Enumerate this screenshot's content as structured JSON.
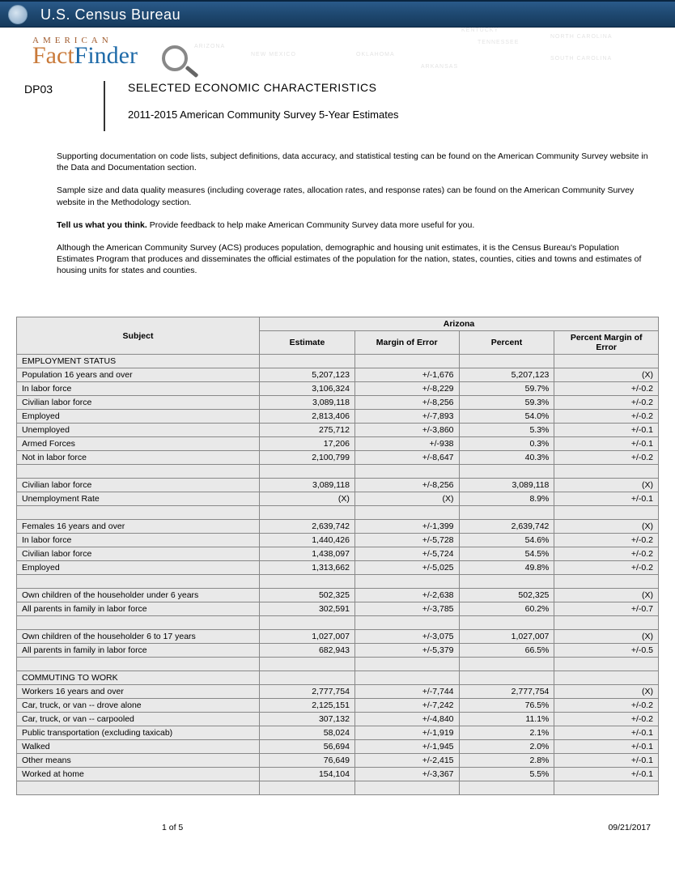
{
  "banner": "U.S. Census Bureau",
  "logo": {
    "american": "AMERICAN",
    "fact": "Fact",
    "finder": "Finder"
  },
  "mapLabels": [
    "ARIZONA",
    "NEW MEXICO",
    "OKLAHOMA",
    "ARKANSAS",
    "TENNESSEE",
    "KENTUCKY",
    "NORTH CAROLINA",
    "SOUTH CAROLINA"
  ],
  "code": "DP03",
  "title1": "SELECTED ECONOMIC CHARACTERISTICS",
  "title2": "2011-2015 American Community Survey 5-Year Estimates",
  "intro": {
    "p1": "Supporting documentation on code lists, subject definitions, data accuracy, and statistical testing can be found on the American Community Survey website in the Data and Documentation section.",
    "p2": "Sample size and data quality measures (including coverage rates, allocation rates, and response rates) can be found on the American Community Survey website in the Methodology section.",
    "p3b": "Tell us what you think.",
    "p3": " Provide feedback to help make American Community Survey data more useful for you.",
    "p4": "Although the American Community Survey (ACS) produces population, demographic and housing unit estimates, it is the Census Bureau's Population Estimates Program that produces and disseminates the official estimates of the population for the nation, states, counties, cities and towns and estimates of housing units for states and counties."
  },
  "table": {
    "colgroup": "Arizona",
    "columns": [
      "Subject",
      "Estimate",
      "Margin of Error",
      "Percent",
      "Percent Margin of Error"
    ],
    "rows": [
      {
        "type": "section",
        "label": "EMPLOYMENT STATUS"
      },
      {
        "pad": 1,
        "label": "Population 16 years and over",
        "est": "5,207,123",
        "moe": "+/-1,676",
        "pct": "5,207,123",
        "pme": "(X)"
      },
      {
        "pad": 2,
        "label": "In labor force",
        "est": "3,106,324",
        "moe": "+/-8,229",
        "pct": "59.7%",
        "pme": "+/-0.2"
      },
      {
        "pad": 3,
        "label": "Civilian labor force",
        "est": "3,089,118",
        "moe": "+/-8,256",
        "pct": "59.3%",
        "pme": "+/-0.2"
      },
      {
        "pad": 4,
        "label": "Employed",
        "est": "2,813,406",
        "moe": "+/-7,893",
        "pct": "54.0%",
        "pme": "+/-0.2"
      },
      {
        "pad": 4,
        "label": "Unemployed",
        "est": "275,712",
        "moe": "+/-3,860",
        "pct": "5.3%",
        "pme": "+/-0.1"
      },
      {
        "pad": 3,
        "label": "Armed Forces",
        "est": "17,206",
        "moe": "+/-938",
        "pct": "0.3%",
        "pme": "+/-0.1"
      },
      {
        "pad": 2,
        "label": "Not in labor force",
        "est": "2,100,799",
        "moe": "+/-8,647",
        "pct": "40.3%",
        "pme": "+/-0.2"
      },
      {
        "type": "spacer"
      },
      {
        "pad": 1,
        "label": "Civilian labor force",
        "est": "3,089,118",
        "moe": "+/-8,256",
        "pct": "3,089,118",
        "pme": "(X)"
      },
      {
        "pad": 2,
        "label": "Unemployment Rate",
        "est": "(X)",
        "moe": "(X)",
        "pct": "8.9%",
        "pme": "+/-0.1"
      },
      {
        "type": "spacer"
      },
      {
        "pad": 1,
        "label": "Females 16 years and over",
        "est": "2,639,742",
        "moe": "+/-1,399",
        "pct": "2,639,742",
        "pme": "(X)"
      },
      {
        "pad": 2,
        "label": "In labor force",
        "est": "1,440,426",
        "moe": "+/-5,728",
        "pct": "54.6%",
        "pme": "+/-0.2"
      },
      {
        "pad": 3,
        "label": "Civilian labor force",
        "est": "1,438,097",
        "moe": "+/-5,724",
        "pct": "54.5%",
        "pme": "+/-0.2"
      },
      {
        "pad": 4,
        "label": "Employed",
        "est": "1,313,662",
        "moe": "+/-5,025",
        "pct": "49.8%",
        "pme": "+/-0.2"
      },
      {
        "type": "spacer"
      },
      {
        "pad": 1,
        "label": "Own children of the householder under 6 years",
        "est": "502,325",
        "moe": "+/-2,638",
        "pct": "502,325",
        "pme": "(X)"
      },
      {
        "pad": 2,
        "label": "All parents in family in labor force",
        "est": "302,591",
        "moe": "+/-3,785",
        "pct": "60.2%",
        "pme": "+/-0.7"
      },
      {
        "type": "spacer"
      },
      {
        "pad": 1,
        "label": "Own children of the householder 6 to 17 years",
        "est": "1,027,007",
        "moe": "+/-3,075",
        "pct": "1,027,007",
        "pme": "(X)"
      },
      {
        "pad": 2,
        "label": "All parents in family in labor force",
        "est": "682,943",
        "moe": "+/-5,379",
        "pct": "66.5%",
        "pme": "+/-0.5"
      },
      {
        "type": "spacer"
      },
      {
        "type": "section",
        "label": "COMMUTING TO WORK"
      },
      {
        "pad": 1,
        "label": "Workers 16 years and over",
        "est": "2,777,754",
        "moe": "+/-7,744",
        "pct": "2,777,754",
        "pme": "(X)"
      },
      {
        "pad": 2,
        "label": "Car, truck, or van -- drove alone",
        "est": "2,125,151",
        "moe": "+/-7,242",
        "pct": "76.5%",
        "pme": "+/-0.2"
      },
      {
        "pad": 2,
        "label": "Car, truck, or van -- carpooled",
        "est": "307,132",
        "moe": "+/-4,840",
        "pct": "11.1%",
        "pme": "+/-0.2"
      },
      {
        "pad": 2,
        "label": "Public transportation (excluding taxicab)",
        "est": "58,024",
        "moe": "+/-1,919",
        "pct": "2.1%",
        "pme": "+/-0.1"
      },
      {
        "pad": 2,
        "label": "Walked",
        "est": "56,694",
        "moe": "+/-1,945",
        "pct": "2.0%",
        "pme": "+/-0.1"
      },
      {
        "pad": 2,
        "label": "Other means",
        "est": "76,649",
        "moe": "+/-2,415",
        "pct": "2.8%",
        "pme": "+/-0.1"
      },
      {
        "pad": 2,
        "label": "Worked at home",
        "est": "154,104",
        "moe": "+/-3,367",
        "pct": "5.5%",
        "pme": "+/-0.1"
      },
      {
        "type": "spacer"
      }
    ]
  },
  "footer": {
    "page": "1  of 5",
    "date": "09/21/2017"
  }
}
